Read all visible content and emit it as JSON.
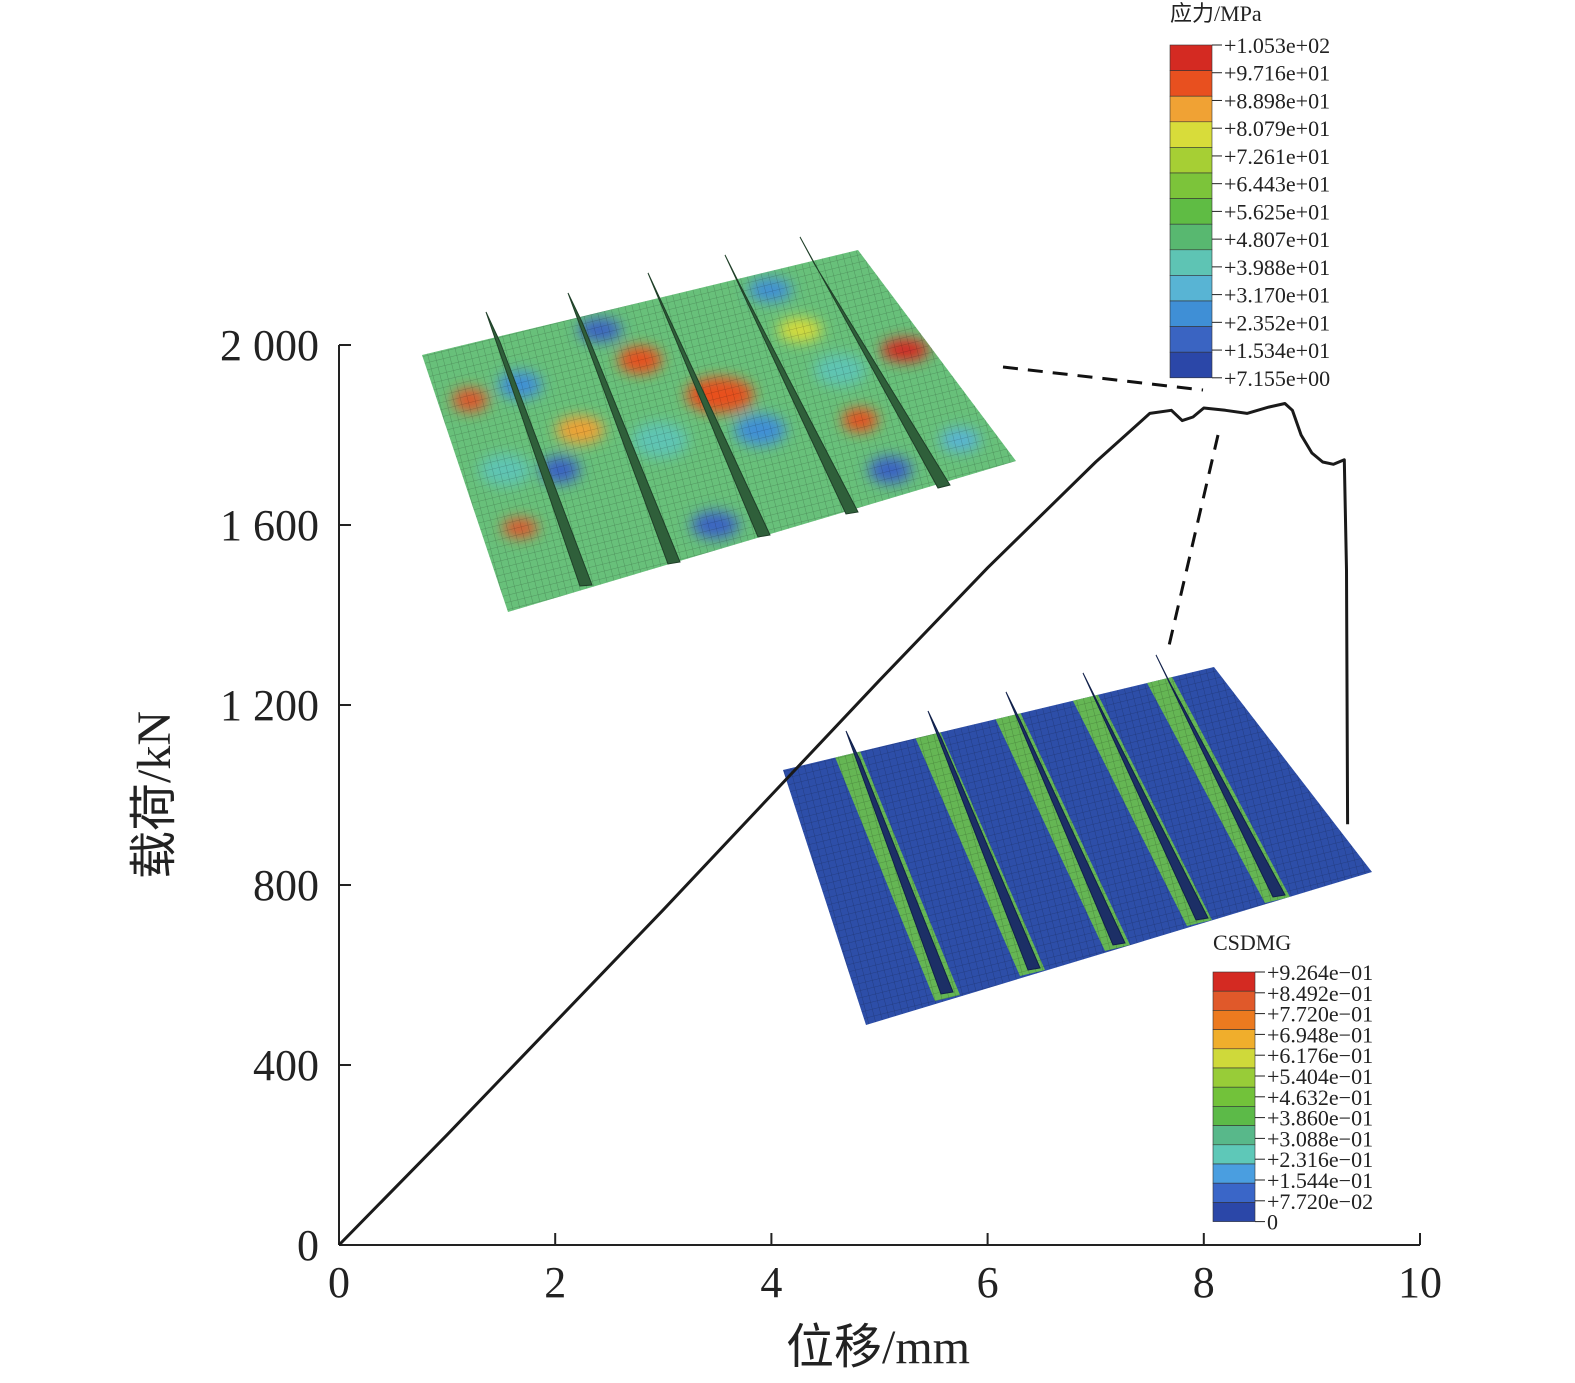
{
  "chart_data": {
    "type": "line",
    "xlabel": "位移/mm",
    "ylabel": "载荷/kN",
    "xlim": [
      0,
      10
    ],
    "ylim": [
      0,
      2000
    ],
    "xticks": [
      0,
      2,
      4,
      6,
      8,
      10
    ],
    "yticks": [
      0,
      400,
      800,
      1200,
      1600,
      2000
    ],
    "xtick_labels": [
      "0",
      "2",
      "4",
      "6",
      "8",
      "10"
    ],
    "ytick_labels": [
      "0",
      "400",
      "800",
      "1 200",
      "1 600",
      "2 000"
    ],
    "grid": false,
    "series": [
      {
        "color": "#1a1a1a",
        "x": [
          0,
          1,
          2,
          3,
          4,
          5,
          6,
          7,
          7.5,
          7.7,
          7.8,
          7.9,
          8.0,
          8.2,
          8.4,
          8.6,
          8.75,
          8.82,
          8.9,
          9.0,
          9.1,
          9.2,
          9.3,
          9.32,
          9.33
        ],
        "y": [
          0,
          245,
          495,
          745,
          1000,
          1255,
          1505,
          1740,
          1848,
          1855,
          1832,
          1840,
          1860,
          1855,
          1848,
          1862,
          1870,
          1855,
          1800,
          1760,
          1740,
          1735,
          1745,
          1500,
          935
        ]
      }
    ],
    "insets": [
      {
        "name": "stress-contour",
        "legend_title": "应力/MPa",
        "legend_labels": [
          "+1.053e+02",
          "+9.716e+01",
          "+8.898e+01",
          "+8.079e+01",
          "+7.261e+01",
          "+6.443e+01",
          "+5.625e+01",
          "+4.807e+01",
          "+3.988e+01",
          "+3.170e+01",
          "+2.352e+01",
          "+1.534e+01",
          "+7.155e+00"
        ],
        "legend_colors": [
          "#d42a22",
          "#e8501f",
          "#f0a234",
          "#d8dc3a",
          "#a6cf34",
          "#7cc43a",
          "#5fbc44",
          "#58b870",
          "#5ec4b4",
          "#58b4d4",
          "#3f8fd6",
          "#3a64c2",
          "#2b47a8"
        ]
      },
      {
        "name": "damage-contour",
        "legend_title": "CSDMG",
        "legend_labels": [
          "+9.264e−01",
          "+8.492e−01",
          "+7.720e−01",
          "+6.948e−01",
          "+6.176e−01",
          "+5.404e−01",
          "+4.632e−01",
          "+3.860e−01",
          "+3.088e−01",
          "+2.316e−01",
          "+1.544e−01",
          "+7.720e−02",
          "0"
        ],
        "legend_colors": [
          "#d42a22",
          "#e0592a",
          "#ec7a1f",
          "#f0ae2c",
          "#cfd93a",
          "#98cc38",
          "#72c23a",
          "#5cba48",
          "#58b88a",
          "#5ec8b8",
          "#4a9ee0",
          "#3a66c8",
          "#2b47a8"
        ]
      }
    ]
  }
}
